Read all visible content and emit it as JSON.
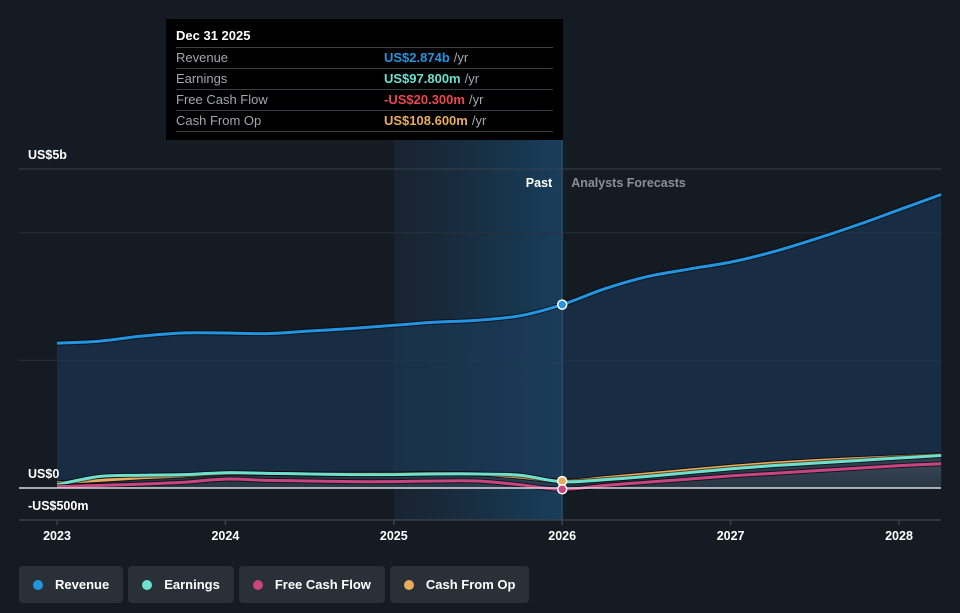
{
  "tooltip": {
    "date": "Dec 31 2025",
    "rows": [
      {
        "label": "Revenue",
        "value": "US$2.874b",
        "unit": "/yr",
        "color": "#2394df"
      },
      {
        "label": "Earnings",
        "value": "US$97.800m",
        "unit": "/yr",
        "color": "#6ee0d0"
      },
      {
        "label": "Free Cash Flow",
        "value": "-US$20.300m",
        "unit": "/yr",
        "color": "#e8484e"
      },
      {
        "label": "Cash From Op",
        "value": "US$108.600m",
        "unit": "/yr",
        "color": "#e8ac5c"
      }
    ]
  },
  "legend": [
    {
      "label": "Revenue",
      "color": "#2394df"
    },
    {
      "label": "Earnings",
      "color": "#6ee0d0"
    },
    {
      "label": "Free Cash Flow",
      "color": "#c9457f"
    },
    {
      "label": "Cash From Op",
      "color": "#e8ac5c"
    }
  ],
  "chart_data": {
    "type": "area",
    "title": "",
    "xlabel": "",
    "ylabel": "",
    "y_unit": "US$ billions",
    "ylim": [
      -0.5,
      5.0
    ],
    "xlim": [
      2022.8,
      2028.25
    ],
    "y_tick_labels": [
      {
        "value": 5.0,
        "label": "US$5b"
      },
      {
        "value": 0.0,
        "label": "US$0"
      },
      {
        "value": -0.5,
        "label": "-US$500m"
      }
    ],
    "x_tick_labels": [
      {
        "value": 2023,
        "label": "2023"
      },
      {
        "value": 2024,
        "label": "2024"
      },
      {
        "value": 2025,
        "label": "2025"
      },
      {
        "value": 2026,
        "label": "2026"
      },
      {
        "value": 2027,
        "label": "2027"
      },
      {
        "value": 2028,
        "label": "2028"
      }
    ],
    "gridlines": [
      5.0,
      4.0,
      2.0
    ],
    "grid": true,
    "divider_x": 2026,
    "highlight_range": [
      2025,
      2026
    ],
    "region_labels": {
      "past": "Past",
      "forecast": "Analysts Forecasts"
    },
    "legend_position": "bottom-left",
    "series": [
      {
        "name": "Revenue",
        "color": "#2394df",
        "x": [
          2023.0,
          2023.25,
          2023.5,
          2023.75,
          2024.0,
          2024.25,
          2024.5,
          2024.75,
          2025.0,
          2025.25,
          2025.5,
          2025.75,
          2026.0,
          2026.25,
          2026.5,
          2026.75,
          2027.0,
          2027.25,
          2027.5,
          2027.75,
          2028.0,
          2028.25
        ],
        "values": [
          2.27,
          2.3,
          2.38,
          2.43,
          2.43,
          2.42,
          2.46,
          2.5,
          2.55,
          2.6,
          2.63,
          2.7,
          2.874,
          3.12,
          3.31,
          3.43,
          3.54,
          3.7,
          3.9,
          4.12,
          4.36,
          4.6
        ]
      },
      {
        "name": "Earnings",
        "color": "#6ee0d0",
        "x": [
          2023.0,
          2023.25,
          2023.5,
          2023.75,
          2024.0,
          2024.25,
          2024.5,
          2024.75,
          2025.0,
          2025.25,
          2025.5,
          2025.75,
          2026.0,
          2026.25,
          2026.5,
          2026.75,
          2027.0,
          2027.25,
          2027.5,
          2027.75,
          2028.0,
          2028.25
        ],
        "values": [
          0.05,
          0.18,
          0.2,
          0.21,
          0.24,
          0.23,
          0.22,
          0.21,
          0.21,
          0.22,
          0.22,
          0.2,
          0.098,
          0.13,
          0.18,
          0.24,
          0.3,
          0.35,
          0.39,
          0.43,
          0.47,
          0.51
        ]
      },
      {
        "name": "Free Cash Flow",
        "color": "#c9457f",
        "x": [
          2023.0,
          2023.25,
          2023.5,
          2023.75,
          2024.0,
          2024.25,
          2024.5,
          2024.75,
          2025.0,
          2025.25,
          2025.5,
          2025.75,
          2026.0,
          2026.25,
          2026.5,
          2026.75,
          2027.0,
          2027.25,
          2027.5,
          2027.75,
          2028.0,
          2028.25
        ],
        "values": [
          0.02,
          0.04,
          0.06,
          0.09,
          0.14,
          0.12,
          0.11,
          0.1,
          0.1,
          0.11,
          0.11,
          0.05,
          -0.0203,
          0.04,
          0.09,
          0.14,
          0.19,
          0.23,
          0.27,
          0.31,
          0.35,
          0.38
        ]
      },
      {
        "name": "Cash From Op",
        "color": "#e8ac5c",
        "x": [
          2023.0,
          2023.25,
          2023.5,
          2023.75,
          2024.0,
          2024.25,
          2024.5,
          2024.75,
          2025.0,
          2025.25,
          2025.5,
          2025.75,
          2026.0,
          2026.25,
          2026.5,
          2026.75,
          2027.0,
          2027.25,
          2027.5,
          2027.75,
          2028.0,
          2028.25
        ],
        "values": [
          0.08,
          0.12,
          0.16,
          0.19,
          0.23,
          0.23,
          0.22,
          0.22,
          0.22,
          0.23,
          0.22,
          0.17,
          0.1086,
          0.16,
          0.22,
          0.28,
          0.34,
          0.39,
          0.43,
          0.46,
          0.49,
          0.52
        ]
      }
    ]
  }
}
